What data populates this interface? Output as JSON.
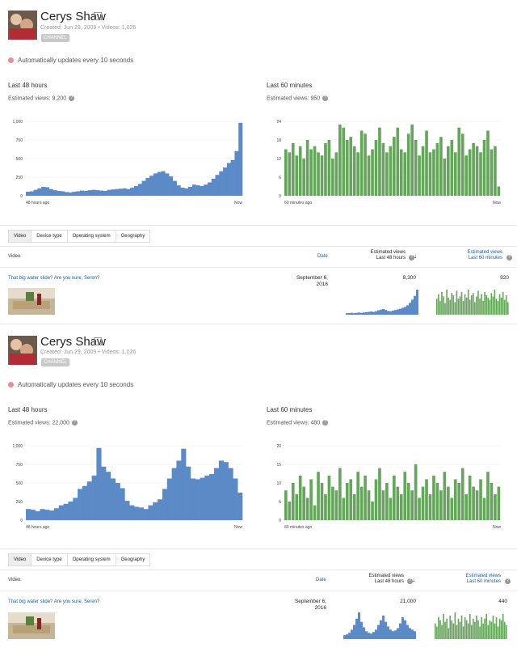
{
  "panels": [
    {
      "channel": {
        "name": "Cerys Shaw",
        "meta": "Created: Jun 29, 2009  •  Videos: 1,026",
        "badge": "CHANNEL"
      },
      "live_text": "Automatically updates every 10 seconds",
      "h48": {
        "title": "Last 48 hours",
        "views": "Estimated views: 9,200"
      },
      "m60": {
        "title": "Last 60 minutes",
        "views": "Estimated views: 950"
      },
      "tabs": [
        "Video",
        "Device type",
        "Operating system",
        "Geography"
      ],
      "table": {
        "col_video": "Video",
        "col_date": "Date",
        "col_48_l1": "Estimated views",
        "col_48_l2": "Last 48 hours",
        "col_60_l1": "Estimated views",
        "col_60_l2": "Last 60 minutes",
        "row": {
          "title": "That big water slide? Are you sure, Seren?",
          "date_l1": "September 6,",
          "date_l2": "2016",
          "v48": "8,300",
          "v60": "920"
        }
      }
    },
    {
      "channel": {
        "name": "Cerys Shaw",
        "meta": "Created: Jun 29, 2009  •  Videos: 1,026",
        "badge": "CHANNEL"
      },
      "live_text": "Automatically updates every 10 seconds",
      "h48": {
        "title": "Last 48 hours",
        "views": "Estimated views: 22,000"
      },
      "m60": {
        "title": "Last 60 minutes",
        "views": "Estimated views: 480"
      },
      "tabs": [
        "Video",
        "Device type",
        "Operating system",
        "Geography"
      ],
      "table": {
        "col_video": "Video",
        "col_date": "Date",
        "col_48_l1": "Estimated views",
        "col_48_l2": "Last 48 hours",
        "col_60_l1": "Estimated views",
        "col_60_l2": "Last 60 minutes",
        "row": {
          "title": "That big water slide? Are you sure, Seren?",
          "date_l1": "September 6,",
          "date_l2": "2016",
          "v48": "21,000",
          "v60": "440"
        }
      }
    }
  ],
  "chart_data": [
    {
      "type": "area",
      "title": "Last 48 hours",
      "color": "#5b8ac6",
      "ylim": [
        0,
        1000
      ],
      "y_ticks": [
        "0",
        "250",
        "500",
        "750",
        "1,000"
      ],
      "x_labels": [
        "48 hours ago",
        "Now"
      ],
      "values": [
        55,
        60,
        80,
        100,
        120,
        115,
        90,
        75,
        65,
        60,
        50,
        45,
        55,
        60,
        70,
        65,
        75,
        80,
        75,
        70,
        65,
        80,
        85,
        90,
        95,
        100,
        90,
        110,
        130,
        160,
        200,
        240,
        270,
        300,
        320,
        330,
        300,
        260,
        200,
        140,
        110,
        100,
        120,
        150,
        140,
        130,
        150,
        180,
        230,
        280,
        330,
        380,
        440,
        480,
        600,
        980
      ]
    },
    {
      "type": "bar",
      "title": "Last 60 minutes",
      "color": "#66a65c",
      "ylim": [
        0,
        24
      ],
      "y_ticks": [
        "0",
        "6",
        "12",
        "18",
        "24"
      ],
      "x_labels": [
        "60 minutes ago",
        "Now"
      ],
      "values": [
        15,
        14,
        17,
        13,
        16,
        12,
        18,
        15,
        16,
        14,
        13,
        17,
        18,
        12,
        14,
        23,
        22,
        18,
        19,
        16,
        14,
        21,
        20,
        13,
        15,
        18,
        22,
        17,
        14,
        16,
        19,
        22,
        15,
        14,
        20,
        23,
        18,
        13,
        16,
        21,
        14,
        15,
        17,
        19,
        12,
        16,
        18,
        14,
        22,
        20,
        13,
        15,
        17,
        16,
        14,
        18,
        21,
        15,
        16,
        3
      ]
    },
    {
      "type": "area",
      "title": "Last 48 hours",
      "color": "#5b8ac6",
      "ylim": [
        0,
        1000
      ],
      "y_ticks": [
        "0",
        "250",
        "500",
        "750",
        "1,000"
      ],
      "x_labels": [
        "48 hours ago",
        "Now"
      ],
      "values": [
        150,
        140,
        120,
        150,
        140,
        130,
        160,
        200,
        220,
        250,
        300,
        420,
        460,
        520,
        600,
        970,
        720,
        650,
        560,
        500,
        430,
        260,
        200,
        180,
        170,
        150,
        200,
        240,
        280,
        420,
        560,
        700,
        800,
        960,
        720,
        560,
        550,
        570,
        600,
        620,
        700,
        800,
        780,
        700,
        560,
        370
      ]
    },
    {
      "type": "bar",
      "title": "Last 60 minutes",
      "color": "#66a65c",
      "ylim": [
        0,
        20
      ],
      "y_ticks": [
        "0",
        "5",
        "10",
        "15",
        "20"
      ],
      "x_labels": [
        "60 minutes ago",
        "Now"
      ],
      "values": [
        8,
        5,
        10,
        7,
        12,
        9,
        6,
        11,
        4,
        13,
        10,
        7,
        12,
        9,
        8,
        14,
        6,
        10,
        11,
        7,
        13,
        9,
        12,
        8,
        5,
        11,
        14,
        8,
        10,
        6,
        12,
        9,
        7,
        13,
        10,
        8,
        15,
        6,
        9,
        11,
        7,
        12,
        10,
        8,
        13,
        9,
        6,
        11,
        10,
        14,
        7,
        12,
        9,
        8,
        11,
        6,
        13,
        10,
        7,
        9
      ]
    }
  ],
  "sparklines": {
    "top_48": [
      5,
      5,
      6,
      5,
      6,
      7,
      6,
      7,
      8,
      9,
      10,
      9,
      11,
      14,
      16,
      18,
      15,
      12,
      11,
      13,
      15,
      17,
      19,
      22,
      25,
      30,
      38,
      48,
      60,
      80
    ],
    "top_60": [
      14,
      18,
      12,
      20,
      16,
      10,
      22,
      15,
      13,
      19,
      17,
      11,
      21,
      14,
      16,
      20,
      12,
      18,
      15,
      22,
      13,
      17,
      19,
      11,
      16,
      21,
      14,
      18,
      12,
      20,
      17,
      15,
      13,
      19,
      16,
      22,
      14,
      12,
      18,
      15,
      20,
      13,
      17,
      11
    ],
    "bot_48": [
      5,
      6,
      8,
      12,
      18,
      26,
      34,
      22,
      15,
      10,
      8,
      7,
      9,
      12,
      18,
      24,
      30,
      22,
      16,
      12,
      10,
      11,
      14,
      20,
      28,
      24,
      18,
      14,
      12,
      10
    ],
    "bot_60": [
      10,
      8,
      14,
      12,
      9,
      16,
      11,
      13,
      7,
      15,
      12,
      10,
      17,
      9,
      13,
      11,
      15,
      8,
      14,
      12,
      10,
      16,
      9,
      13,
      11,
      15,
      12,
      8,
      14,
      10,
      13,
      16,
      9,
      12,
      11,
      15,
      10,
      14,
      8,
      13,
      12,
      16,
      11,
      9
    ]
  },
  "colors": {
    "blue": "#5b8ac6",
    "green": "#66a65c",
    "link": "#1a5ea8",
    "live": "#e88e8e"
  }
}
